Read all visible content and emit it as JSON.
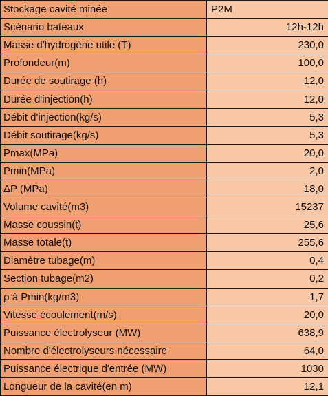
{
  "table": {
    "rows": [
      {
        "label": "Stockage cavité minée",
        "value": "P2M",
        "align": "left"
      },
      {
        "label": "Scénario bateaux",
        "value": "12h-12h"
      },
      {
        "label": "Masse d'hydrogène utile (T)",
        "value": "230,0"
      },
      {
        "label": "Profondeur(m)",
        "value": "100,0"
      },
      {
        "label": "Durée de soutirage (h)",
        "value": "12,0"
      },
      {
        "label": "Durée d'injection(h)",
        "value": "12,0"
      },
      {
        "label": "Débit d'injection(kg/s)",
        "value": "5,3"
      },
      {
        "label": "Débit soutirage(kg/s)",
        "value": "5,3"
      },
      {
        "label": "Pmax(MPa)",
        "value": "20,0"
      },
      {
        "label": "Pmin(MPa)",
        "value": "2,0"
      },
      {
        "label": "ΔP (MPa)",
        "value": "18,0"
      },
      {
        "label": "Volume cavité(m3)",
        "value": "15237"
      },
      {
        "label": "Masse coussin(t)",
        "value": "25,6"
      },
      {
        "label": "Masse totale(t)",
        "value": "255,6"
      },
      {
        "label": "Diamètre tubage(m)",
        "value": "0,4"
      },
      {
        "label": "Section tubage(m2)",
        "value": "0,2"
      },
      {
        "label": "ρ à Pmin(kg/m3)",
        "value": "1,7"
      },
      {
        "label": "Vitesse écoulement(m/s)",
        "value": "20,0"
      },
      {
        "label": "Puissance électrolyseur (MW)",
        "value": "638,9"
      },
      {
        "label": "Nombre d'électrolyseurs nécessaire",
        "value": "64,0"
      },
      {
        "label": "Puissance électrique d'entrée (MW)",
        "value": "1030"
      },
      {
        "label": "Longueur de la cavité(en m)",
        "value": "12,1"
      }
    ]
  },
  "colors": {
    "label_fill": "#f0a070",
    "value_fill": "#f8c7a6",
    "grid": "#1a1a1a"
  }
}
